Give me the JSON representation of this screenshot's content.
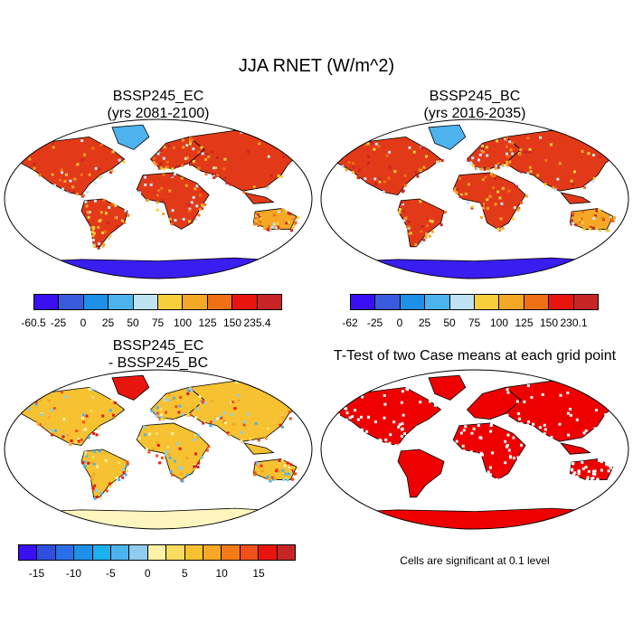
{
  "figure": {
    "title": "JJA RNET (W/m^2)"
  },
  "panels": {
    "ec": {
      "line1": "BSSP245_EC",
      "line2": "(yrs 2081-2100)"
    },
    "bc": {
      "line1": "BSSP245_BC",
      "line2": "(yrs 2016-2035)"
    },
    "diff": {
      "line1": "BSSP245_EC",
      "line2": "- BSSP245_BC"
    },
    "ttest": {
      "line1": "T-Test of two Case means at each grid point"
    }
  },
  "colorbars": {
    "ec": {
      "labels": [
        "-60.5",
        "-25",
        "0",
        "25",
        "50",
        "75",
        "100",
        "125",
        "150",
        "235.4"
      ],
      "colors": [
        "#3a0ff2",
        "#3b5bdf",
        "#1e90e8",
        "#4cb3ee",
        "#bfe3f2",
        "#f6cf3a",
        "#f5a726",
        "#f07014",
        "#e8150f",
        "#c82626"
      ]
    },
    "bc": {
      "labels": [
        "-62",
        "-25",
        "0",
        "25",
        "50",
        "75",
        "100",
        "125",
        "150",
        "230.1"
      ],
      "colors": [
        "#3a0ff2",
        "#3b5bdf",
        "#1e90e8",
        "#4cb3ee",
        "#bfe3f2",
        "#f6cf3a",
        "#f5a726",
        "#f07014",
        "#e8150f",
        "#c82626"
      ]
    },
    "diff": {
      "labels": [
        "-15",
        "-10",
        "-5",
        "0",
        "5",
        "10",
        "15"
      ],
      "colors": [
        "#3a0ff2",
        "#2f4fe0",
        "#2a6fe8",
        "#1e90e8",
        "#1bb0ee",
        "#4cb3ee",
        "#8fcdee",
        "#fdf2a5",
        "#f8dc60",
        "#f6c232",
        "#f5a726",
        "#f47b18",
        "#f0501a",
        "#e8150f",
        "#c82626"
      ]
    }
  },
  "ttest_note": "Cells are significant at 0.1 level",
  "map_colors": {
    "ocean": "#ffffff",
    "ec_land": "#e23a18",
    "diff_land": "#f6c232",
    "ttest_land": "#ee0000",
    "antarctica_abs": "#3a1ef0",
    "antarctica_diff": "#fff6bf"
  }
}
